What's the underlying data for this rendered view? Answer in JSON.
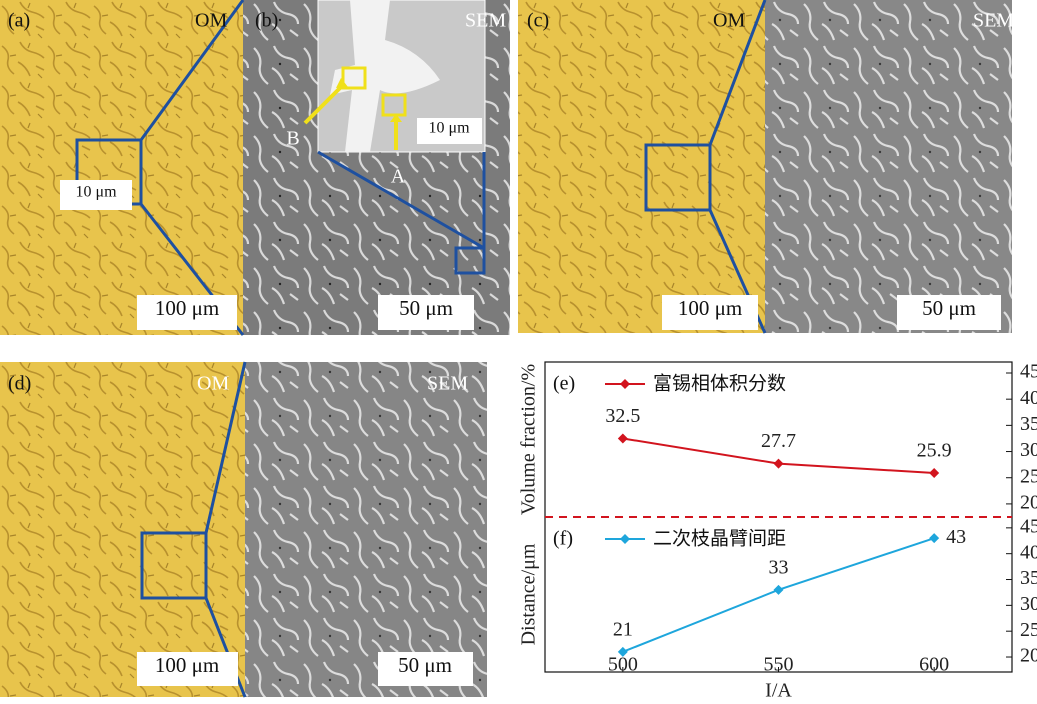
{
  "panels": [
    {
      "label": "(a)",
      "technique": "OM",
      "scale_bar": "100 μm",
      "inset_scale_bar": "10 μm"
    },
    {
      "label": "(b)",
      "technique": "SEM",
      "scale_bar": "50 μm",
      "inset_scale_bar": "10 μm",
      "point_labels": [
        "A",
        "B"
      ]
    },
    {
      "label": "(c)",
      "techniques": [
        "OM",
        "SEM"
      ],
      "scale_bars": [
        "100 μm",
        "50 μm"
      ]
    },
    {
      "label": "(d)",
      "techniques": [
        "OM",
        "SEM"
      ],
      "scale_bars": [
        "100 μm",
        "50 μm"
      ]
    }
  ],
  "chart_data": [
    {
      "type": "line",
      "panel_label": "(e)",
      "y_label": "Volume fraction/%",
      "x": [
        500,
        550,
        600
      ],
      "xlim": [
        475,
        625
      ],
      "series": [
        {
          "name": "富锡相体积分数",
          "color": "#d2141e",
          "values": [
            32.5,
            27.7,
            25.9
          ],
          "axis": "y2"
        }
      ],
      "y2lim": [
        17.5,
        47.1
      ],
      "y2ticks": [
        20,
        25,
        30,
        35,
        40,
        45
      ]
    },
    {
      "type": "line",
      "panel_label": "(f)",
      "y_label": "Distance/μm",
      "x": [
        500,
        550,
        600
      ],
      "xlim": [
        475,
        625
      ],
      "series": [
        {
          "name": "二次枝晶臂间距",
          "color": "#1ea6dc",
          "values": [
            21,
            33,
            43
          ],
          "axis": "y2"
        }
      ],
      "y2lim": [
        17.1,
        47.1
      ],
      "y2ticks": [
        20,
        25,
        30,
        35,
        40,
        45
      ],
      "xticks": [
        500,
        550,
        600
      ],
      "x_label": "I/A"
    }
  ]
}
